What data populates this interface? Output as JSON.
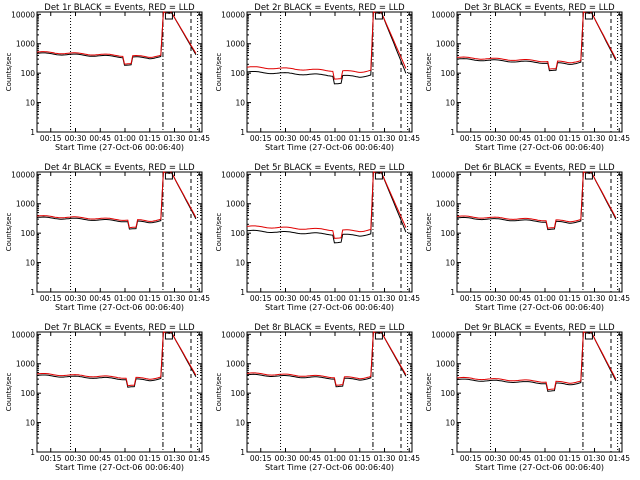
{
  "figure": {
    "ylabel": "Counts/sec",
    "xlabel": "Start Time (27-Oct-06 00:06:40)"
  },
  "chart_data": {
    "type": "line",
    "scale_y": "log",
    "ylim": [
      1,
      12000
    ],
    "xlim_minutes_after_start": [
      0,
      100
    ],
    "yticks": [
      "1",
      "10",
      "100",
      "1000",
      "10000"
    ],
    "xticks": [
      "00:15",
      "00:30",
      "00:45",
      "01:00",
      "01:15",
      "01:30",
      "01:45"
    ],
    "series_legend": "BLACK = Events, RED = LLD",
    "colors": {
      "events": "#000000",
      "lld": "#e00000"
    },
    "markers": {
      "dotted_at": "00:27",
      "dashdot_at": "01:23",
      "dashed_at": "01:40",
      "dotted_right_at": "01:44"
    },
    "panels": [
      {
        "title": "Det 1r BLACK = Events, RED = LLD",
        "events_base": 470,
        "lld_base": 520,
        "dip": "00:59"
      },
      {
        "title": "Det 2r BLACK = Events, RED = LLD",
        "events_base": 110,
        "lld_base": 160,
        "dip": "00:59"
      },
      {
        "title": "Det 3r BLACK = Events, RED = LLD",
        "events_base": 300,
        "lld_base": 340,
        "dip": "01:02"
      },
      {
        "title": "Det 4r BLACK = Events, RED = LLD",
        "events_base": 340,
        "lld_base": 380,
        "dip": "01:02"
      },
      {
        "title": "Det 5r BLACK = Events, RED = LLD",
        "events_base": 120,
        "lld_base": 170,
        "dip": "00:59"
      },
      {
        "title": "Det 6r BLACK = Events, RED = LLD",
        "events_base": 330,
        "lld_base": 370,
        "dip": "01:01"
      },
      {
        "title": "Det 7r BLACK = Events, RED = LLD",
        "events_base": 400,
        "lld_base": 450,
        "dip": "01:01"
      },
      {
        "title": "Det 8r BLACK = Events, RED = LLD",
        "events_base": 420,
        "lld_base": 470,
        "dip": "01:00"
      },
      {
        "title": "Det 9r BLACK = Events, RED = LLD",
        "events_base": 290,
        "lld_base": 330,
        "dip": "01:01"
      }
    ]
  }
}
